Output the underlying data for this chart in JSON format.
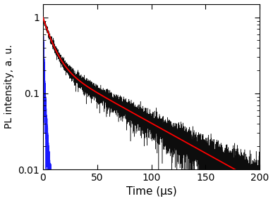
{
  "title": "",
  "xlabel": "Time (μs)",
  "ylabel": "PL intensity, a. u.",
  "xlim": [
    0,
    200
  ],
  "ylim": [
    0.01,
    1.5
  ],
  "x_ticks": [
    0,
    50,
    100,
    150,
    200
  ],
  "y_ticks": [
    0.01,
    0.1,
    1
  ],
  "black_decay_A1": 0.75,
  "black_decay_tau1": 8.0,
  "black_decay_A2": 0.25,
  "black_decay_tau2": 55.0,
  "blue_decay_A1": 0.92,
  "blue_decay_tau1": 0.8,
  "blue_decay_A2": 0.08,
  "blue_decay_tau2": 3.0,
  "black_color": "#000000",
  "blue_color": "#0000FF",
  "red_color": "#FF0000",
  "background_color": "#FFFFFF",
  "figsize": [
    3.87,
    2.86
  ],
  "dpi": 100,
  "t_max": 200,
  "n_points_black": 8000,
  "n_points_blue": 800,
  "blue_t_max": 10
}
